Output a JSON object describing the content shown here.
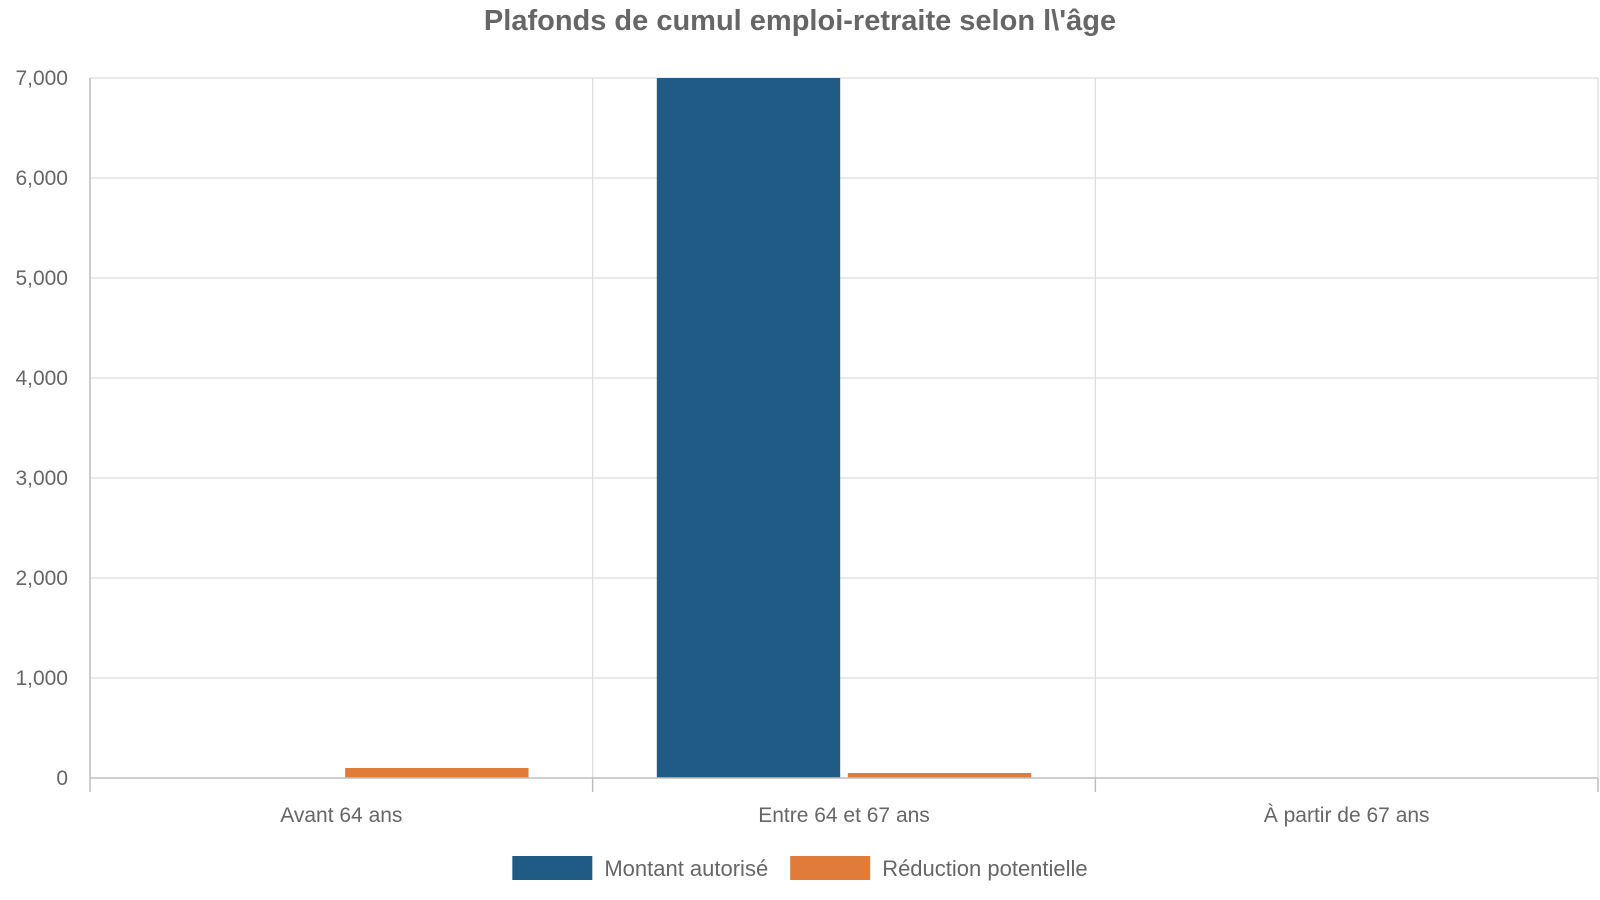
{
  "chart_data": {
    "type": "bar",
    "title": "Plafonds de cumul emploi-retraite selon l\\'âge",
    "categories": [
      "Avant 64 ans",
      "Entre 64 et 67 ans",
      "À partir de 67 ans"
    ],
    "series": [
      {
        "name": "Montant autorisé",
        "color": "#1f5b85",
        "values": [
          0,
          7000,
          0
        ]
      },
      {
        "name": "Réduction potentielle",
        "color": "#e07b39",
        "values": [
          100,
          50,
          0
        ]
      }
    ],
    "ylim": [
      0,
      7000
    ],
    "yticks": [
      0,
      1000,
      2000,
      3000,
      4000,
      5000,
      6000,
      7000
    ],
    "ytick_labels": [
      "0",
      "1,000",
      "2,000",
      "3,000",
      "4,000",
      "5,000",
      "6,000",
      "7,000"
    ],
    "xlabel": "",
    "ylabel": "",
    "grid": true,
    "legend_position": "bottom"
  }
}
